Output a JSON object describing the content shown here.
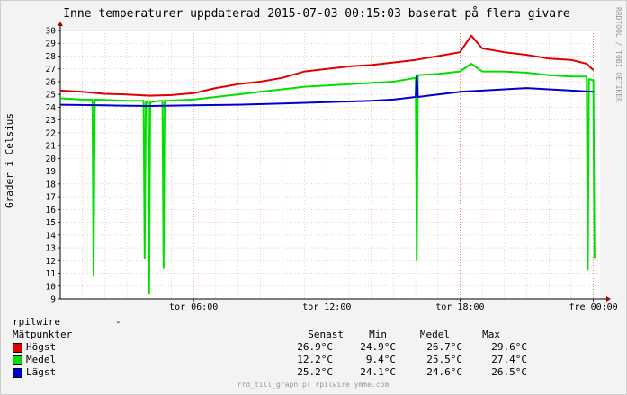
{
  "chart_data": {
    "type": "line",
    "title": "Inne temperaturer uppdaterad 2015-07-03 00:15:03 baserat på flera givare",
    "ylabel": "Grader i Celsius",
    "side_label": "RRDTOOL / TOBI OETIKER",
    "footer": "rrd_till_graph.pl rpilwire ymme.com",
    "ylim": [
      9,
      30
    ],
    "xlim": [
      0,
      24.3
    ],
    "y_ticks": [
      "9",
      "10",
      "11",
      "12",
      "13",
      "14",
      "15",
      "16",
      "17",
      "18",
      "19",
      "20",
      "21",
      "22",
      "23",
      "24",
      "25",
      "26",
      "27",
      "28",
      "29",
      "30"
    ],
    "x_ticks": [
      {
        "label": "tor 06:00",
        "x": 6
      },
      {
        "label": "tor 12:00",
        "x": 12
      },
      {
        "label": "tor 18:00",
        "x": 18
      },
      {
        "label": "fre 00:00",
        "x": 24
      }
    ],
    "series": [
      {
        "name": "Högst",
        "color": "#e00000",
        "values": [
          [
            0,
            25.3
          ],
          [
            1,
            25.2
          ],
          [
            2,
            25.05
          ],
          [
            3,
            25.0
          ],
          [
            4,
            24.9
          ],
          [
            5,
            24.95
          ],
          [
            6,
            25.1
          ],
          [
            7,
            25.5
          ],
          [
            8,
            25.8
          ],
          [
            9,
            26.0
          ],
          [
            10,
            26.3
          ],
          [
            11,
            26.8
          ],
          [
            12,
            27.0
          ],
          [
            13,
            27.2
          ],
          [
            14,
            27.3
          ],
          [
            15,
            27.5
          ],
          [
            16,
            27.7
          ],
          [
            17,
            28.0
          ],
          [
            18,
            28.3
          ],
          [
            18.5,
            29.6
          ],
          [
            19,
            28.6
          ],
          [
            20,
            28.3
          ],
          [
            21,
            28.1
          ],
          [
            22,
            27.8
          ],
          [
            23,
            27.7
          ],
          [
            23.7,
            27.4
          ],
          [
            24,
            26.9
          ]
        ]
      },
      {
        "name": "Medel",
        "color": "#00e000",
        "values": [
          [
            0,
            24.7
          ],
          [
            1,
            24.6
          ],
          [
            1.45,
            24.6
          ],
          [
            1.5,
            10.8
          ],
          [
            1.55,
            24.6
          ],
          [
            3,
            24.5
          ],
          [
            3.75,
            24.5
          ],
          [
            3.8,
            12.2
          ],
          [
            3.85,
            24.4
          ],
          [
            3.95,
            24.4
          ],
          [
            4.0,
            9.4
          ],
          [
            4.05,
            24.4
          ],
          [
            4.5,
            24.5
          ],
          [
            4.6,
            24.5
          ],
          [
            4.65,
            11.4
          ],
          [
            4.7,
            24.5
          ],
          [
            6,
            24.6
          ],
          [
            7,
            24.8
          ],
          [
            8,
            25.0
          ],
          [
            9,
            25.2
          ],
          [
            10,
            25.4
          ],
          [
            11,
            25.6
          ],
          [
            12,
            25.7
          ],
          [
            13,
            25.8
          ],
          [
            14,
            25.9
          ],
          [
            15,
            26.0
          ],
          [
            16,
            26.3
          ],
          [
            16.05,
            12.0
          ],
          [
            16.1,
            26.5
          ],
          [
            17,
            26.6
          ],
          [
            18,
            26.8
          ],
          [
            18.5,
            27.4
          ],
          [
            19,
            26.8
          ],
          [
            20,
            26.8
          ],
          [
            21,
            26.7
          ],
          [
            22,
            26.5
          ],
          [
            23,
            26.4
          ],
          [
            23.7,
            26.4
          ],
          [
            23.75,
            11.3
          ],
          [
            23.8,
            26.2
          ],
          [
            24,
            26.1
          ],
          [
            24.05,
            12.2
          ]
        ]
      },
      {
        "name": "Lägst",
        "color": "#0000cc",
        "values": [
          [
            0,
            24.2
          ],
          [
            2,
            24.15
          ],
          [
            4,
            24.1
          ],
          [
            6,
            24.15
          ],
          [
            8,
            24.2
          ],
          [
            10,
            24.3
          ],
          [
            12,
            24.4
          ],
          [
            14,
            24.5
          ],
          [
            15,
            24.6
          ],
          [
            16,
            24.8
          ],
          [
            16.05,
            26.5
          ],
          [
            16.1,
            24.8
          ],
          [
            17,
            25.0
          ],
          [
            18,
            25.2
          ],
          [
            19,
            25.3
          ],
          [
            20,
            25.4
          ],
          [
            21,
            25.5
          ],
          [
            22,
            25.4
          ],
          [
            23,
            25.3
          ],
          [
            24,
            25.2
          ]
        ]
      }
    ]
  },
  "legend": {
    "host": "rpilwire",
    "host_dash": "-",
    "header": {
      "name": "Mätpunkter",
      "last": "Senast",
      "min": "Min",
      "avg": "Medel",
      "max": "Max"
    },
    "rows": [
      {
        "name": "Högst",
        "color": "#e00000",
        "last": "26.9°C",
        "min": "24.9°C",
        "avg": "26.7°C",
        "max": "29.6°C"
      },
      {
        "name": "Medel",
        "color": "#00e000",
        "last": "12.2°C",
        "min": "9.4°C",
        "avg": "25.5°C",
        "max": "27.4°C"
      },
      {
        "name": "Lägst",
        "color": "#0000cc",
        "last": "25.2°C",
        "min": "24.1°C",
        "avg": "24.6°C",
        "max": "26.5°C"
      }
    ]
  }
}
